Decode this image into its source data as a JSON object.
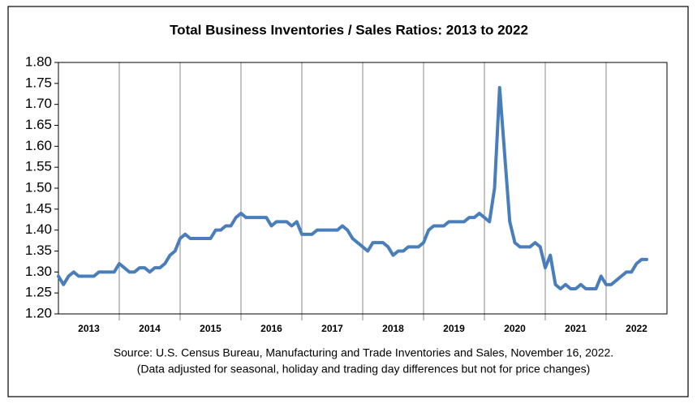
{
  "chart_data": {
    "type": "line",
    "title": "Total Business Inventories / Sales Ratios: 2013 to 2022",
    "notes": [
      "Source: U.S. Census Bureau, Manufacturing and Trade Inventories and Sales, November 16, 2022.",
      "(Data adjusted for seasonal, holiday and trading day differences but not for price changes)"
    ],
    "categories": [
      "2013",
      "2014",
      "2015",
      "2016",
      "2017",
      "2018",
      "2019",
      "2020",
      "2021",
      "2022"
    ],
    "values": [
      [
        1.29,
        1.27,
        1.29,
        1.3,
        1.29,
        1.29,
        1.29,
        1.29,
        1.3,
        1.3,
        1.3,
        1.3
      ],
      [
        1.32,
        1.31,
        1.3,
        1.3,
        1.31,
        1.31,
        1.3,
        1.31,
        1.31,
        1.32,
        1.34,
        1.35
      ],
      [
        1.38,
        1.39,
        1.38,
        1.38,
        1.38,
        1.38,
        1.38,
        1.4,
        1.4,
        1.41,
        1.41,
        1.43
      ],
      [
        1.44,
        1.43,
        1.43,
        1.43,
        1.43,
        1.43,
        1.41,
        1.42,
        1.42,
        1.42,
        1.41,
        1.42
      ],
      [
        1.39,
        1.39,
        1.39,
        1.4,
        1.4,
        1.4,
        1.4,
        1.4,
        1.41,
        1.4,
        1.38,
        1.37
      ],
      [
        1.36,
        1.35,
        1.37,
        1.37,
        1.37,
        1.36,
        1.34,
        1.35,
        1.35,
        1.36,
        1.36,
        1.36
      ],
      [
        1.37,
        1.4,
        1.41,
        1.41,
        1.41,
        1.42,
        1.42,
        1.42,
        1.42,
        1.43,
        1.43,
        1.44
      ],
      [
        1.43,
        1.42,
        1.5,
        1.74,
        1.58,
        1.42,
        1.37,
        1.36,
        1.36,
        1.36,
        1.37,
        1.36
      ],
      [
        1.31,
        1.34,
        1.27,
        1.26,
        1.27,
        1.26,
        1.26,
        1.27,
        1.26,
        1.26,
        1.26,
        1.29
      ],
      [
        1.27,
        1.27,
        1.28,
        1.29,
        1.3,
        1.3,
        1.32,
        1.33,
        1.33
      ]
    ],
    "color": "#4a7ebb",
    "ylim": [
      1.2,
      1.8
    ],
    "yticks": [
      {
        "value": 1.2,
        "label": "1.20"
      },
      {
        "value": 1.25,
        "label": "1.25"
      },
      {
        "value": 1.3,
        "label": "1.30"
      },
      {
        "value": 1.35,
        "label": "1.35"
      },
      {
        "value": 1.4,
        "label": "1.40"
      },
      {
        "value": 1.45,
        "label": "1.45"
      },
      {
        "value": 1.5,
        "label": "1.50"
      },
      {
        "value": 1.55,
        "label": "1.55"
      },
      {
        "value": 1.6,
        "label": "1.60"
      },
      {
        "value": 1.65,
        "label": "1.65"
      },
      {
        "value": 1.7,
        "label": "1.70"
      },
      {
        "value": 1.75,
        "label": "1.75"
      },
      {
        "value": 1.8,
        "label": "1.80"
      }
    ],
    "grid": true
  }
}
